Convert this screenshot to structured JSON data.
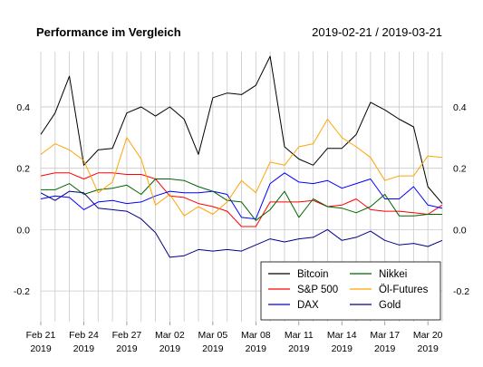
{
  "chart_data": {
    "type": "line",
    "title": "Performance im Vergleich",
    "date_range": "2019-02-21 / 2019-03-21",
    "xlabel": "",
    "ylabel": "",
    "ylim": [
      -0.3,
      0.58
    ],
    "y_ticks": [
      -0.2,
      0.0,
      0.2,
      0.4
    ],
    "y_tick_labels": [
      "-0.2",
      "0.0",
      "0.2",
      "0.4"
    ],
    "x_tick_labels": [
      [
        "Feb 21",
        "2019"
      ],
      [
        "Feb 24",
        "2019"
      ],
      [
        "Feb 27",
        "2019"
      ],
      [
        "Mar 02",
        "2019"
      ],
      [
        "Mar 05",
        "2019"
      ],
      [
        "Mar 08",
        "2019"
      ],
      [
        "Mar 11",
        "2019"
      ],
      [
        "Mar 14",
        "2019"
      ],
      [
        "Mar 17",
        "2019"
      ],
      [
        "Mar 20",
        "2019"
      ]
    ],
    "x_tick_dates": [
      "2019-02-21",
      "2019-02-24",
      "2019-02-27",
      "2019-03-02",
      "2019-03-05",
      "2019-03-08",
      "2019-03-11",
      "2019-03-14",
      "2019-03-17",
      "2019-03-20"
    ],
    "grid": true,
    "legend_position": "bottom-right",
    "x": [
      "2019-02-21",
      "2019-02-22",
      "2019-02-23",
      "2019-02-24",
      "2019-02-25",
      "2019-02-26",
      "2019-02-27",
      "2019-02-28",
      "2019-03-01",
      "2019-03-02",
      "2019-03-03",
      "2019-03-04",
      "2019-03-05",
      "2019-03-06",
      "2019-03-07",
      "2019-03-08",
      "2019-03-09",
      "2019-03-10",
      "2019-03-11",
      "2019-03-12",
      "2019-03-13",
      "2019-03-14",
      "2019-03-15",
      "2019-03-16",
      "2019-03-17",
      "2019-03-18",
      "2019-03-19",
      "2019-03-20",
      "2019-03-21"
    ],
    "series": [
      {
        "name": "Bitcoin",
        "color": "#000000",
        "values": [
          0.31,
          0.38,
          0.5,
          0.21,
          0.26,
          0.265,
          0.38,
          0.4,
          0.37,
          0.4,
          0.36,
          0.245,
          0.43,
          0.445,
          0.44,
          0.47,
          0.565,
          0.27,
          0.23,
          0.21,
          0.265,
          0.265,
          0.31,
          0.415,
          0.39,
          0.36,
          0.335,
          0.14,
          0.085
        ]
      },
      {
        "name": "S&P 500",
        "color": "#ff0000",
        "values": [
          0.175,
          0.185,
          0.185,
          0.165,
          0.185,
          0.185,
          0.18,
          0.18,
          0.165,
          0.11,
          0.105,
          0.085,
          0.075,
          0.06,
          0.01,
          0.01,
          0.09,
          0.09,
          0.09,
          0.095,
          0.075,
          0.08,
          0.1,
          0.065,
          0.06,
          0.06,
          0.055,
          0.05,
          0.08
        ]
      },
      {
        "name": "DAX",
        "color": "#0000ff",
        "values": [
          0.1,
          0.11,
          0.105,
          0.065,
          0.09,
          0.095,
          0.085,
          0.09,
          0.11,
          0.125,
          0.12,
          0.12,
          0.125,
          0.115,
          0.04,
          0.035,
          0.15,
          0.185,
          0.155,
          0.15,
          0.16,
          0.135,
          0.15,
          0.165,
          0.1,
          0.1,
          0.14,
          0.08,
          0.07
        ]
      },
      {
        "name": "Nikkei",
        "color": "#006400",
        "values": [
          0.13,
          0.13,
          0.15,
          0.115,
          0.13,
          0.135,
          0.145,
          0.115,
          0.165,
          0.165,
          0.16,
          0.14,
          0.125,
          0.095,
          0.09,
          0.03,
          0.065,
          0.125,
          0.04,
          0.1,
          0.075,
          0.07,
          0.055,
          0.075,
          0.115,
          0.045,
          0.045,
          0.05,
          0.05
        ]
      },
      {
        "name": "Öl-Futures",
        "color": "#ffa500",
        "values": [
          0.245,
          0.28,
          0.26,
          0.225,
          0.12,
          0.155,
          0.3,
          0.23,
          0.08,
          0.115,
          0.045,
          0.075,
          0.05,
          0.09,
          0.16,
          0.12,
          0.22,
          0.21,
          0.27,
          0.28,
          0.36,
          0.3,
          0.27,
          0.235,
          0.16,
          0.175,
          0.175,
          0.24,
          0.235
        ]
      },
      {
        "name": "Gold",
        "color": "#00008b",
        "values": [
          0.12,
          0.095,
          0.125,
          0.12,
          0.07,
          0.065,
          0.06,
          0.035,
          -0.01,
          -0.09,
          -0.085,
          -0.065,
          -0.07,
          -0.065,
          -0.07,
          -0.05,
          -0.03,
          -0.04,
          -0.03,
          -0.025,
          0.0,
          -0.035,
          -0.025,
          -0.005,
          -0.035,
          -0.05,
          -0.045,
          -0.055,
          -0.035
        ]
      }
    ]
  }
}
